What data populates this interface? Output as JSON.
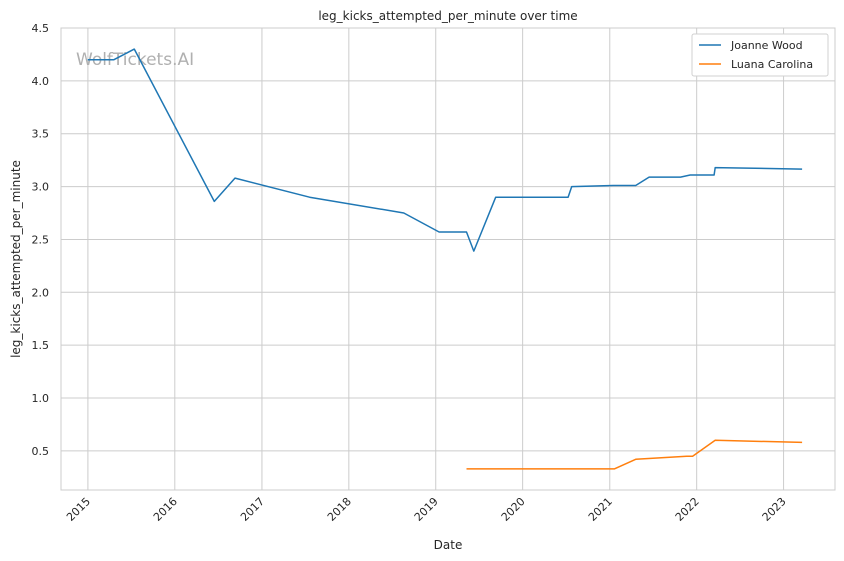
{
  "watermark": "WolfTickets.AI",
  "chart_data": {
    "type": "line",
    "title": "leg_kicks_attempted_per_minute over time",
    "xlabel": "Date",
    "ylabel": "leg_kicks_attempted_per_minute",
    "ylim": [
      0.13,
      4.5
    ],
    "xlim": [
      "2014-09-10",
      "2023-08-05"
    ],
    "x_ticks": [
      "2015",
      "2016",
      "2017",
      "2018",
      "2019",
      "2020",
      "2021",
      "2022",
      "2023"
    ],
    "y_ticks": [
      "0.5",
      "1.0",
      "1.5",
      "2.0",
      "2.5",
      "3.0",
      "3.5",
      "4.0",
      "4.5"
    ],
    "grid": true,
    "legend_position": "top-right",
    "series": [
      {
        "name": "Joanne Wood",
        "color": "#1f77b4",
        "points": [
          [
            "2014-12-31",
            4.2
          ],
          [
            "2015-04-20",
            4.2
          ],
          [
            "2015-07-15",
            4.3
          ],
          [
            "2016-06-15",
            2.86
          ],
          [
            "2016-09-10",
            3.08
          ],
          [
            "2017-07-20",
            2.9
          ],
          [
            "2018-08-20",
            2.75
          ],
          [
            "2019-01-15",
            2.57
          ],
          [
            "2019-05-10",
            2.57
          ],
          [
            "2019-06-10",
            2.39
          ],
          [
            "2019-09-10",
            2.9
          ],
          [
            "2020-07-10",
            2.9
          ],
          [
            "2020-07-25",
            3.0
          ],
          [
            "2021-01-15",
            3.01
          ],
          [
            "2021-04-20",
            3.01
          ],
          [
            "2021-06-15",
            3.09
          ],
          [
            "2021-10-25",
            3.09
          ],
          [
            "2021-12-05",
            3.11
          ],
          [
            "2022-03-15",
            3.11
          ],
          [
            "2022-03-20",
            3.18
          ],
          [
            "2023-03-20",
            3.165
          ]
        ]
      },
      {
        "name": "Luana Carolina",
        "color": "#ff7f0e",
        "points": [
          [
            "2019-05-10",
            0.33
          ],
          [
            "2021-01-20",
            0.33
          ],
          [
            "2021-04-20",
            0.42
          ],
          [
            "2021-07-01",
            0.43
          ],
          [
            "2021-11-20",
            0.45
          ],
          [
            "2021-12-15",
            0.45
          ],
          [
            "2022-03-20",
            0.6
          ],
          [
            "2023-03-20",
            0.58
          ]
        ]
      }
    ]
  }
}
